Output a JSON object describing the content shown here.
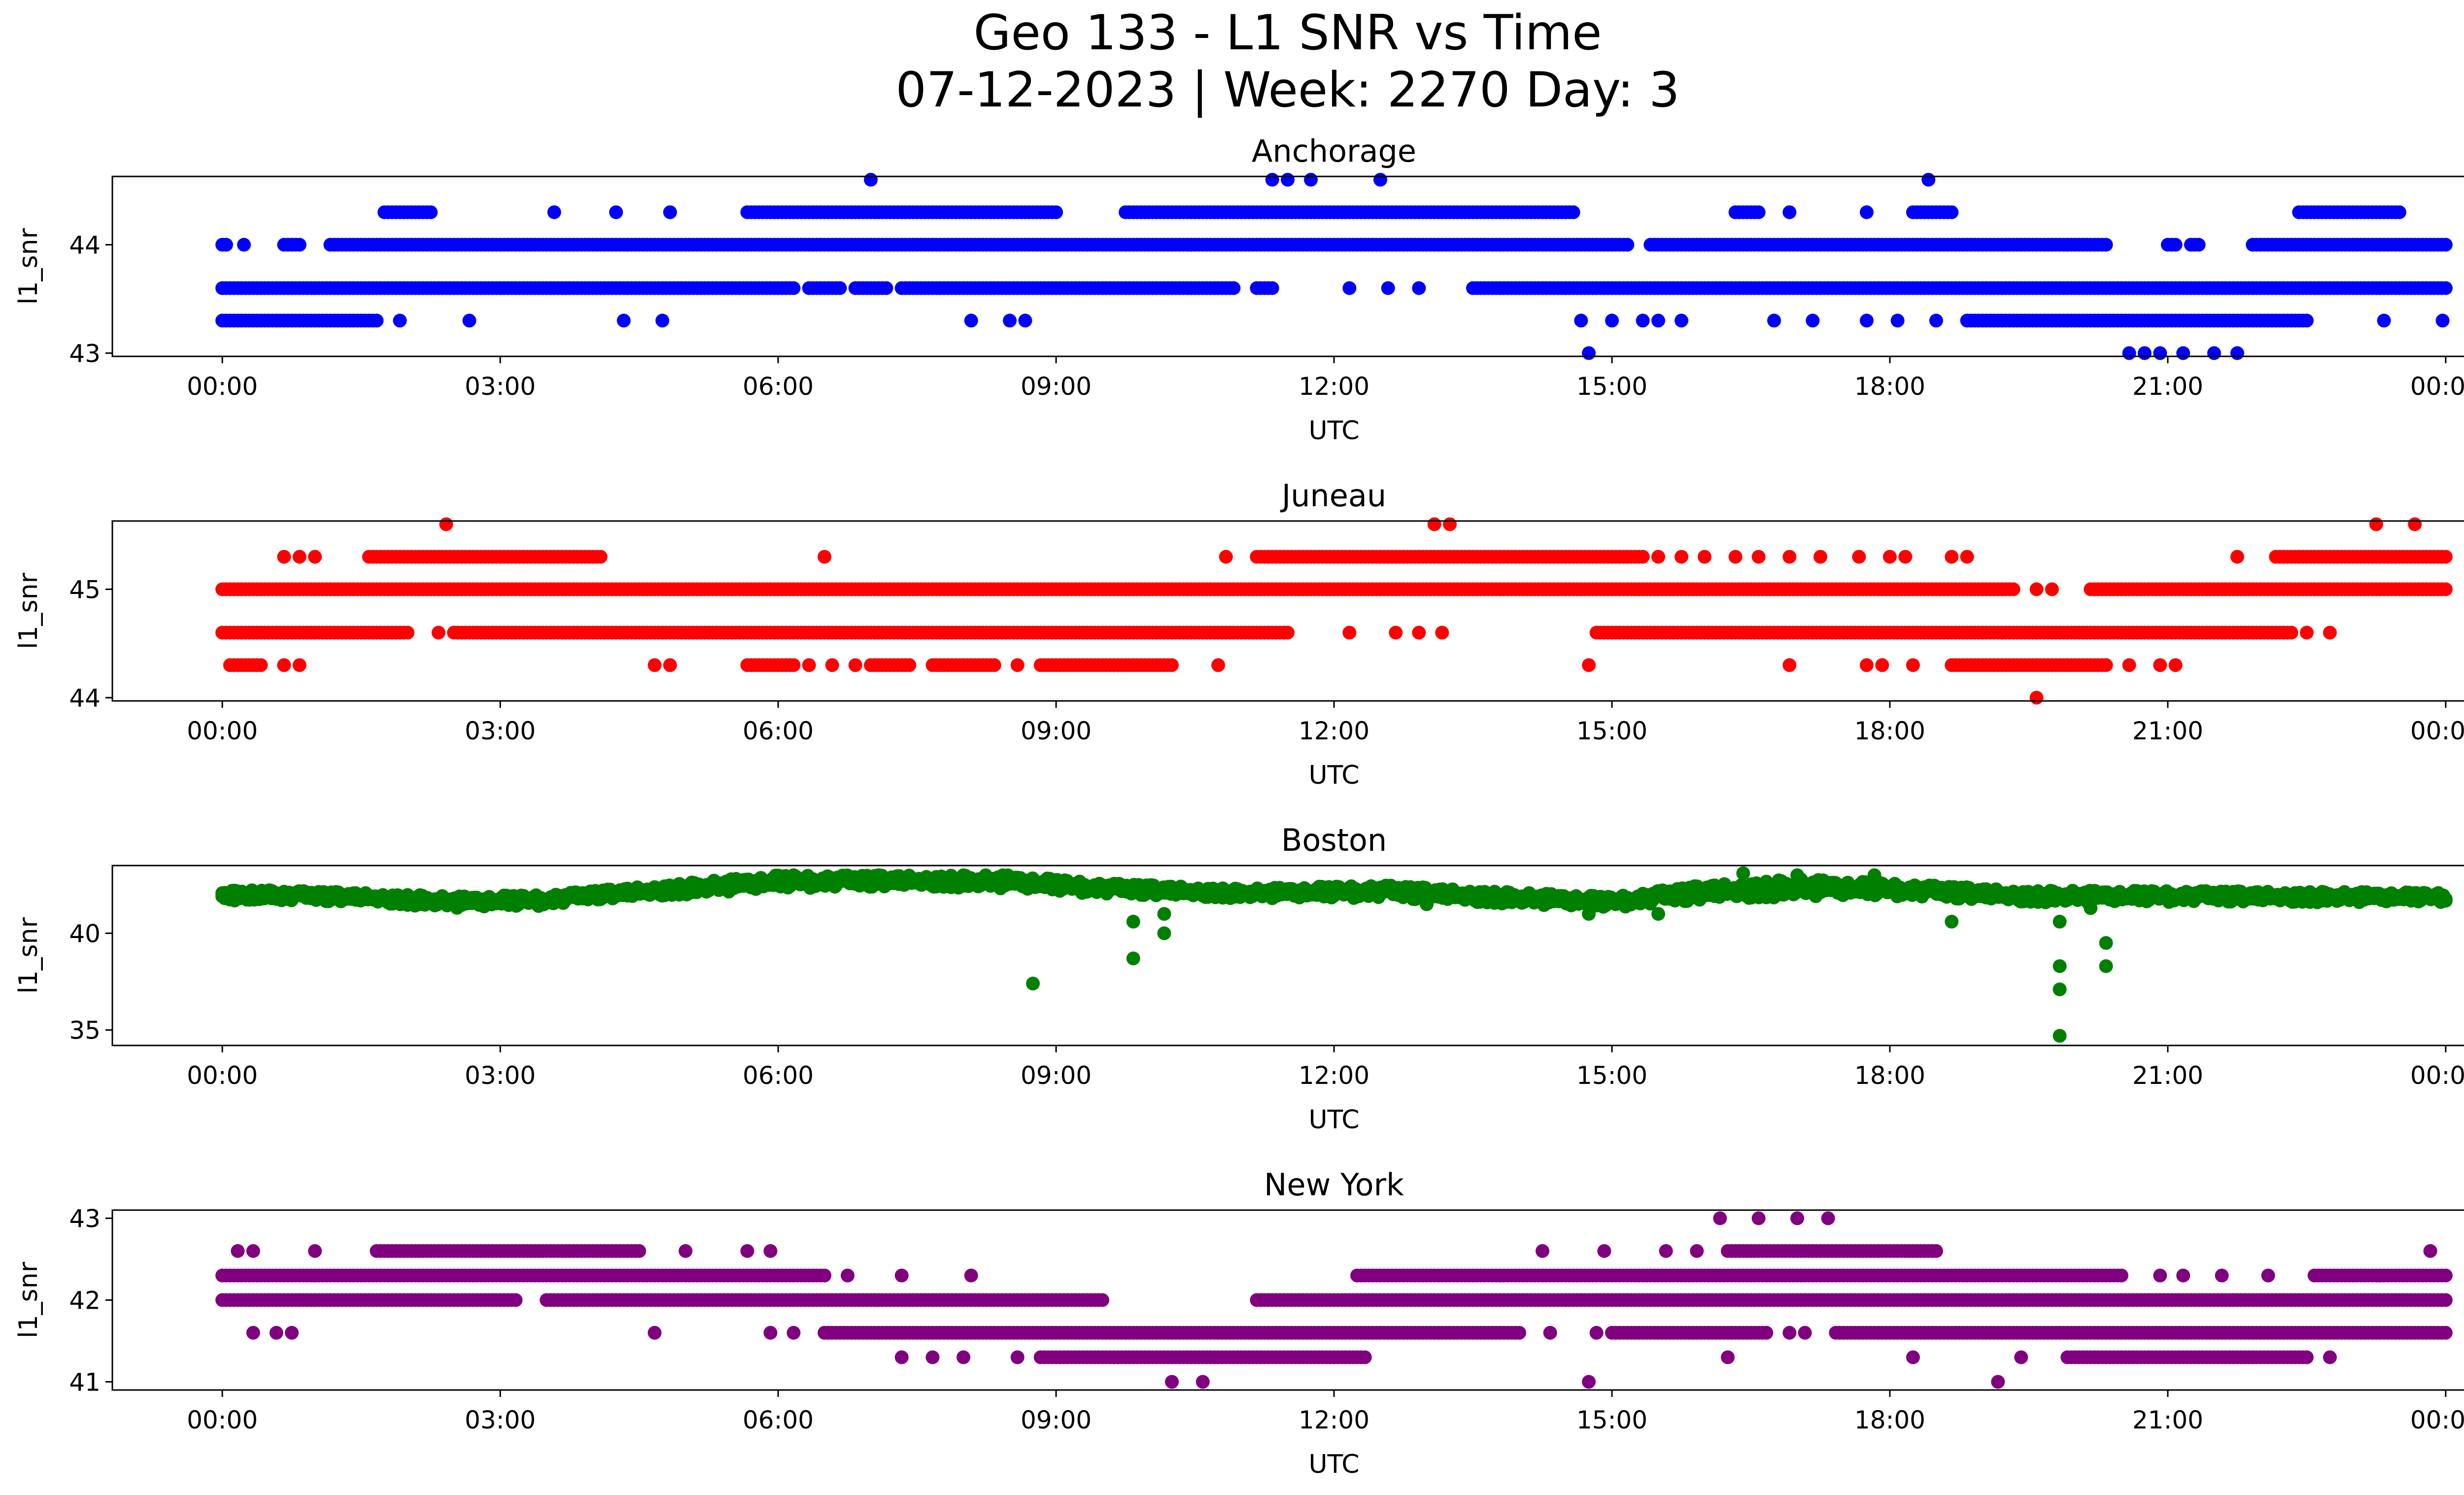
{
  "title_line1": "Geo 133 - L1 SNR vs Time",
  "title_line2": "07-12-2023 | Week: 2270 Day: 3",
  "chart_data": [
    {
      "type": "scatter",
      "title": "Anchorage",
      "xlabel": "UTC",
      "ylabel": "l1_snr",
      "color": "#0000ff",
      "xlim": [
        "00:00",
        "24:00"
      ],
      "xticks": [
        "00:00",
        "03:00",
        "06:00",
        "09:00",
        "12:00",
        "15:00",
        "18:00",
        "21:00",
        "00:00"
      ],
      "ylim": [
        42.97,
        44.63
      ],
      "yticks": [
        43,
        44
      ],
      "ytick_labels": [
        "43",
        "44"
      ],
      "series": [
        {
          "band_y": 44.0,
          "segments": [
            [
              "00:00",
              "00:03"
            ],
            [
              "00:14",
              "00:16"
            ],
            [
              "00:40",
              "00:50"
            ],
            [
              "01:10",
              "15:10"
            ],
            [
              "15:25",
              "20:20"
            ],
            [
              "21:00",
              "21:05"
            ],
            [
              "21:15",
              "21:20"
            ],
            [
              "21:55",
              "24:00"
            ]
          ]
        },
        {
          "band_y": 43.6,
          "segments": [
            [
              "00:00",
              "06:10"
            ],
            [
              "06:20",
              "06:40"
            ],
            [
              "06:50",
              "07:10"
            ],
            [
              "07:20",
              "10:55"
            ],
            [
              "11:10",
              "11:20"
            ],
            [
              "13:30",
              "24:00"
            ]
          ]
        },
        {
          "band_y": 43.3,
          "segments": [
            [
              "00:00",
              "01:40"
            ],
            [
              "18:50",
              "22:30"
            ]
          ]
        },
        {
          "band_y": 44.3,
          "segments": [
            [
              "01:45",
              "02:15"
            ],
            [
              "05:40",
              "09:00"
            ],
            [
              "09:45",
              "14:35"
            ],
            [
              "16:20",
              "16:35"
            ],
            [
              "18:15",
              "18:40"
            ],
            [
              "22:25",
              "23:30"
            ]
          ]
        }
      ],
      "points": [
        {
          "x": "01:55",
          "y": 43.3
        },
        {
          "x": "02:40",
          "y": 43.3
        },
        {
          "x": "04:20",
          "y": 43.3
        },
        {
          "x": "04:45",
          "y": 43.3
        },
        {
          "x": "08:05",
          "y": 43.3
        },
        {
          "x": "08:30",
          "y": 43.3
        },
        {
          "x": "08:40",
          "y": 43.3
        },
        {
          "x": "14:40",
          "y": 43.3
        },
        {
          "x": "15:00",
          "y": 43.3
        },
        {
          "x": "15:20",
          "y": 43.3
        },
        {
          "x": "15:30",
          "y": 43.3
        },
        {
          "x": "15:45",
          "y": 43.3
        },
        {
          "x": "16:45",
          "y": 43.3
        },
        {
          "x": "17:10",
          "y": 43.3
        },
        {
          "x": "17:45",
          "y": 43.3
        },
        {
          "x": "18:05",
          "y": 43.3
        },
        {
          "x": "18:30",
          "y": 43.3
        },
        {
          "x": "23:20",
          "y": 43.3
        },
        {
          "x": "23:58",
          "y": 43.3
        },
        {
          "x": "03:35",
          "y": 44.3
        },
        {
          "x": "04:15",
          "y": 44.3
        },
        {
          "x": "04:50",
          "y": 44.3
        },
        {
          "x": "16:55",
          "y": 44.3
        },
        {
          "x": "17:45",
          "y": 44.3
        },
        {
          "x": "07:00",
          "y": 44.6
        },
        {
          "x": "11:20",
          "y": 44.6
        },
        {
          "x": "11:30",
          "y": 44.6
        },
        {
          "x": "11:45",
          "y": 44.6
        },
        {
          "x": "12:30",
          "y": 44.6
        },
        {
          "x": "18:25",
          "y": 44.6
        },
        {
          "x": "12:10",
          "y": 43.6
        },
        {
          "x": "12:35",
          "y": 43.6
        },
        {
          "x": "12:55",
          "y": 43.6
        },
        {
          "x": "14:45",
          "y": 43.0
        },
        {
          "x": "20:35",
          "y": 43.0
        },
        {
          "x": "20:45",
          "y": 43.0
        },
        {
          "x": "20:55",
          "y": 43.0
        },
        {
          "x": "21:10",
          "y": 43.0
        },
        {
          "x": "21:30",
          "y": 43.0
        },
        {
          "x": "21:45",
          "y": 43.0
        }
      ]
    },
    {
      "type": "scatter",
      "title": "Juneau",
      "xlabel": "UTC",
      "ylabel": "l1_snr",
      "color": "#ff0000",
      "xlim": [
        "00:00",
        "24:00"
      ],
      "xticks": [
        "00:00",
        "03:00",
        "06:00",
        "09:00",
        "12:00",
        "15:00",
        "18:00",
        "21:00",
        "00:00"
      ],
      "ylim": [
        43.97,
        45.63
      ],
      "yticks": [
        44,
        45
      ],
      "ytick_labels": [
        "44",
        "45"
      ],
      "series": [
        {
          "band_y": 45.0,
          "segments": [
            [
              "00:00",
              "19:20"
            ],
            [
              "20:10",
              "24:00"
            ]
          ]
        },
        {
          "band_y": 44.6,
          "segments": [
            [
              "00:00",
              "02:00"
            ],
            [
              "02:30",
              "11:30"
            ],
            [
              "14:50",
              "22:20"
            ]
          ]
        },
        {
          "band_y": 45.3,
          "segments": [
            [
              "01:35",
              "04:05"
            ],
            [
              "11:10",
              "15:20"
            ],
            [
              "22:10",
              "24:00"
            ]
          ]
        },
        {
          "band_y": 44.3,
          "segments": [
            [
              "00:05",
              "00:25"
            ],
            [
              "05:40",
              "06:10"
            ],
            [
              "07:00",
              "07:25"
            ],
            [
              "07:40",
              "08:20"
            ],
            [
              "08:50",
              "10:15"
            ],
            [
              "18:40",
              "20:20"
            ]
          ]
        }
      ],
      "points": [
        {
          "x": "00:40",
          "y": 44.3
        },
        {
          "x": "00:50",
          "y": 44.3
        },
        {
          "x": "04:40",
          "y": 44.3
        },
        {
          "x": "04:50",
          "y": 44.3
        },
        {
          "x": "06:20",
          "y": 44.3
        },
        {
          "x": "06:35",
          "y": 44.3
        },
        {
          "x": "06:50",
          "y": 44.3
        },
        {
          "x": "08:35",
          "y": 44.3
        },
        {
          "x": "10:45",
          "y": 44.3
        },
        {
          "x": "14:45",
          "y": 44.3
        },
        {
          "x": "16:55",
          "y": 44.3
        },
        {
          "x": "17:45",
          "y": 44.3
        },
        {
          "x": "17:55",
          "y": 44.3
        },
        {
          "x": "18:15",
          "y": 44.3
        },
        {
          "x": "20:35",
          "y": 44.3
        },
        {
          "x": "20:55",
          "y": 44.3
        },
        {
          "x": "21:05",
          "y": 44.3
        },
        {
          "x": "00:40",
          "y": 45.3
        },
        {
          "x": "00:50",
          "y": 45.3
        },
        {
          "x": "01:00",
          "y": 45.3
        },
        {
          "x": "06:30",
          "y": 45.3
        },
        {
          "x": "10:50",
          "y": 45.3
        },
        {
          "x": "15:30",
          "y": 45.3
        },
        {
          "x": "15:45",
          "y": 45.3
        },
        {
          "x": "16:00",
          "y": 45.3
        },
        {
          "x": "16:20",
          "y": 45.3
        },
        {
          "x": "16:35",
          "y": 45.3
        },
        {
          "x": "16:55",
          "y": 45.3
        },
        {
          "x": "17:15",
          "y": 45.3
        },
        {
          "x": "17:40",
          "y": 45.3
        },
        {
          "x": "18:00",
          "y": 45.3
        },
        {
          "x": "18:10",
          "y": 45.3
        },
        {
          "x": "18:40",
          "y": 45.3
        },
        {
          "x": "18:50",
          "y": 45.3
        },
        {
          "x": "21:45",
          "y": 45.3
        },
        {
          "x": "02:25",
          "y": 45.6
        },
        {
          "x": "13:05",
          "y": 45.6
        },
        {
          "x": "13:15",
          "y": 45.6
        },
        {
          "x": "23:15",
          "y": 45.6
        },
        {
          "x": "23:40",
          "y": 45.6
        },
        {
          "x": "02:20",
          "y": 44.6
        },
        {
          "x": "12:10",
          "y": 44.6
        },
        {
          "x": "12:40",
          "y": 44.6
        },
        {
          "x": "12:55",
          "y": 44.6
        },
        {
          "x": "13:10",
          "y": 44.6
        },
        {
          "x": "22:30",
          "y": 44.6
        },
        {
          "x": "22:45",
          "y": 44.6
        },
        {
          "x": "19:35",
          "y": 45.0
        },
        {
          "x": "19:45",
          "y": 45.0
        },
        {
          "x": "19:35",
          "y": 44.0
        }
      ]
    },
    {
      "type": "scatter",
      "title": "Boston",
      "xlabel": "UTC",
      "ylabel": "l1_snr",
      "color": "#008000",
      "xlim": [
        "00:00",
        "24:00"
      ],
      "xticks": [
        "00:00",
        "03:00",
        "06:00",
        "09:00",
        "12:00",
        "15:00",
        "18:00",
        "21:00",
        "00:00"
      ],
      "ylim": [
        34.2,
        43.5
      ],
      "yticks": [
        35,
        40
      ],
      "ytick_labels": [
        "35",
        "40"
      ],
      "band_profile": [
        {
          "x": "00:00",
          "low": 41.7,
          "high": 42.3
        },
        {
          "x": "01:30",
          "low": 41.6,
          "high": 42.1
        },
        {
          "x": "02:30",
          "low": 41.3,
          "high": 41.9
        },
        {
          "x": "03:30",
          "low": 41.4,
          "high": 42.0
        },
        {
          "x": "04:00",
          "low": 41.7,
          "high": 42.2
        },
        {
          "x": "05:00",
          "low": 42.0,
          "high": 42.6
        },
        {
          "x": "06:00",
          "low": 42.3,
          "high": 43.0
        },
        {
          "x": "07:30",
          "low": 42.4,
          "high": 43.0
        },
        {
          "x": "08:30",
          "low": 42.3,
          "high": 43.0
        },
        {
          "x": "09:30",
          "low": 42.0,
          "high": 42.6
        },
        {
          "x": "11:00",
          "low": 41.8,
          "high": 42.3
        },
        {
          "x": "12:30",
          "low": 41.8,
          "high": 42.5
        },
        {
          "x": "14:00",
          "low": 41.5,
          "high": 42.1
        },
        {
          "x": "15:00",
          "low": 41.3,
          "high": 41.9
        },
        {
          "x": "16:00",
          "low": 41.7,
          "high": 42.5
        },
        {
          "x": "17:00",
          "low": 41.9,
          "high": 42.8
        },
        {
          "x": "18:00",
          "low": 41.9,
          "high": 42.6
        },
        {
          "x": "19:30",
          "low": 41.6,
          "high": 42.2
        },
        {
          "x": "21:00",
          "low": 41.6,
          "high": 42.2
        },
        {
          "x": "24:00",
          "low": 41.6,
          "high": 42.1
        }
      ],
      "points": [
        {
          "x": "08:45",
          "y": 37.4
        },
        {
          "x": "09:50",
          "y": 38.7
        },
        {
          "x": "09:50",
          "y": 40.6
        },
        {
          "x": "10:10",
          "y": 40.0
        },
        {
          "x": "10:10",
          "y": 41.0
        },
        {
          "x": "18:40",
          "y": 40.6
        },
        {
          "x": "19:50",
          "y": 34.7
        },
        {
          "x": "19:50",
          "y": 37.1
        },
        {
          "x": "19:50",
          "y": 38.3
        },
        {
          "x": "19:50",
          "y": 40.6
        },
        {
          "x": "20:20",
          "y": 38.3
        },
        {
          "x": "20:20",
          "y": 39.5
        },
        {
          "x": "20:10",
          "y": 41.3
        },
        {
          "x": "06:10",
          "y": 43.0
        },
        {
          "x": "07:05",
          "y": 43.0
        },
        {
          "x": "16:25",
          "y": 43.1
        },
        {
          "x": "17:00",
          "y": 43.0
        },
        {
          "x": "17:50",
          "y": 43.0
        },
        {
          "x": "13:00",
          "y": 41.5
        },
        {
          "x": "14:45",
          "y": 41.0
        },
        {
          "x": "15:30",
          "y": 41.0
        }
      ]
    },
    {
      "type": "scatter",
      "title": "New York",
      "xlabel": "UTC",
      "ylabel": "l1_snr",
      "color": "#800080",
      "xlim": [
        "00:00",
        "24:00"
      ],
      "xticks": [
        "00:00",
        "03:00",
        "06:00",
        "09:00",
        "12:00",
        "15:00",
        "18:00",
        "21:00",
        "00:00"
      ],
      "ylim": [
        40.9,
        43.1
      ],
      "yticks": [
        41,
        42,
        43
      ],
      "ytick_labels": [
        "41",
        "42",
        "43"
      ],
      "series": [
        {
          "band_y": 42.3,
          "segments": [
            [
              "00:00",
              "06:30"
            ],
            [
              "12:15",
              "20:30"
            ],
            [
              "22:35",
              "24:00"
            ]
          ]
        },
        {
          "band_y": 42.0,
          "segments": [
            [
              "00:00",
              "03:10"
            ],
            [
              "03:30",
              "09:30"
            ],
            [
              "11:10",
              "24:00"
            ]
          ]
        },
        {
          "band_y": 41.6,
          "segments": [
            [
              "06:30",
              "14:00"
            ],
            [
              "15:00",
              "16:40"
            ],
            [
              "17:25",
              "24:00"
            ]
          ]
        },
        {
          "band_y": 41.3,
          "segments": [
            [
              "08:50",
              "12:20"
            ],
            [
              "19:55",
              "22:30"
            ]
          ]
        },
        {
          "band_y": 42.6,
          "segments": [
            [
              "01:40",
              "04:30"
            ],
            [
              "16:15",
              "18:30"
            ]
          ]
        }
      ],
      "points": [
        {
          "x": "00:10",
          "y": 42.6
        },
        {
          "x": "00:20",
          "y": 42.6
        },
        {
          "x": "01:00",
          "y": 42.6
        },
        {
          "x": "05:00",
          "y": 42.6
        },
        {
          "x": "05:40",
          "y": 42.6
        },
        {
          "x": "05:55",
          "y": 42.6
        },
        {
          "x": "14:15",
          "y": 42.6
        },
        {
          "x": "14:55",
          "y": 42.6
        },
        {
          "x": "15:35",
          "y": 42.6
        },
        {
          "x": "15:55",
          "y": 42.6
        },
        {
          "x": "23:50",
          "y": 42.6
        },
        {
          "x": "00:20",
          "y": 41.6
        },
        {
          "x": "00:35",
          "y": 41.6
        },
        {
          "x": "00:45",
          "y": 41.6
        },
        {
          "x": "04:40",
          "y": 41.6
        },
        {
          "x": "05:55",
          "y": 41.6
        },
        {
          "x": "06:10",
          "y": 41.6
        },
        {
          "x": "14:20",
          "y": 41.6
        },
        {
          "x": "14:50",
          "y": 41.6
        },
        {
          "x": "16:55",
          "y": 41.6
        },
        {
          "x": "17:05",
          "y": 41.6
        },
        {
          "x": "07:20",
          "y": 41.3
        },
        {
          "x": "07:40",
          "y": 41.3
        },
        {
          "x": "08:00",
          "y": 41.3
        },
        {
          "x": "08:35",
          "y": 41.3
        },
        {
          "x": "16:15",
          "y": 41.3
        },
        {
          "x": "18:15",
          "y": 41.3
        },
        {
          "x": "19:25",
          "y": 41.3
        },
        {
          "x": "22:45",
          "y": 41.3
        },
        {
          "x": "06:45",
          "y": 42.3
        },
        {
          "x": "07:20",
          "y": 42.3
        },
        {
          "x": "08:05",
          "y": 42.3
        },
        {
          "x": "20:55",
          "y": 42.3
        },
        {
          "x": "21:10",
          "y": 42.3
        },
        {
          "x": "21:35",
          "y": 42.3
        },
        {
          "x": "22:05",
          "y": 42.3
        },
        {
          "x": "10:15",
          "y": 41.0
        },
        {
          "x": "10:35",
          "y": 41.0
        },
        {
          "x": "14:45",
          "y": 41.0
        },
        {
          "x": "19:10",
          "y": 41.0
        },
        {
          "x": "16:10",
          "y": 43.0
        },
        {
          "x": "16:35",
          "y": 43.0
        },
        {
          "x": "17:00",
          "y": 43.0
        },
        {
          "x": "17:20",
          "y": 43.0
        }
      ]
    }
  ]
}
